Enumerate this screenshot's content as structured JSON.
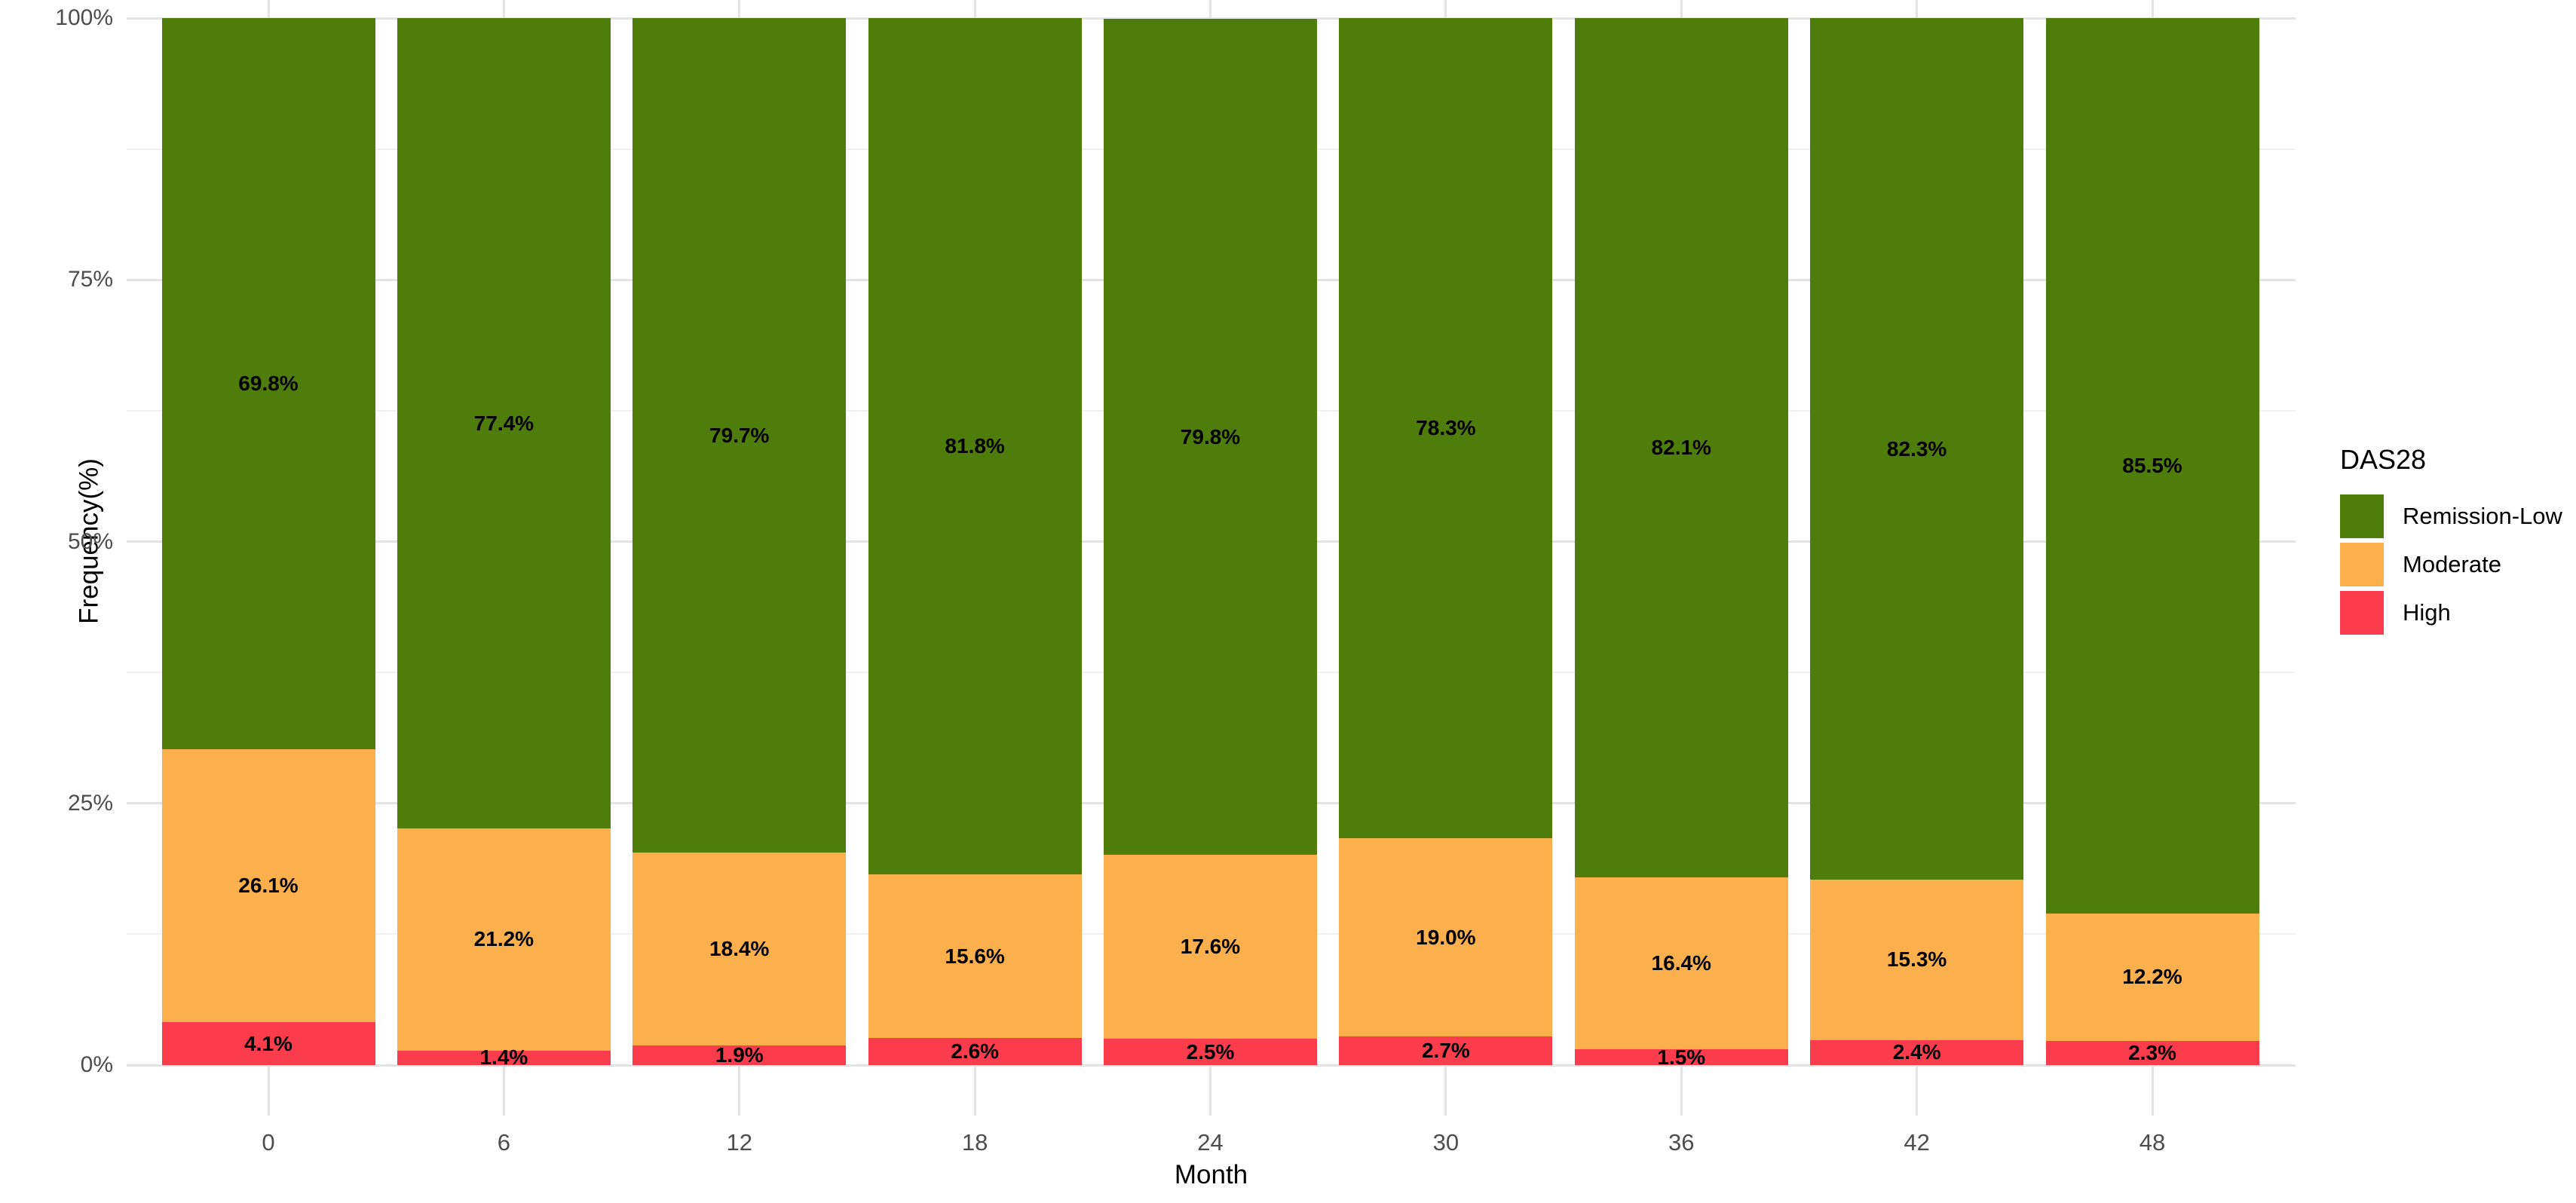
{
  "chart_data": {
    "type": "bar",
    "variant": "stacked-percent",
    "title": "",
    "xlabel": "Month",
    "ylabel": "Frequency(%)",
    "categories": [
      "0",
      "6",
      "12",
      "18",
      "24",
      "30",
      "36",
      "42",
      "48"
    ],
    "series": [
      {
        "name": "High",
        "color": "#fa3c4c",
        "values": [
          4.1,
          1.4,
          1.9,
          2.6,
          2.5,
          2.7,
          1.5,
          2.4,
          2.3
        ],
        "labels": [
          "4.1%",
          "1.4%",
          "1.9%",
          "2.6%",
          "2.5%",
          "2.7%",
          "1.5%",
          "2.4%",
          "2.3%"
        ]
      },
      {
        "name": "Moderate",
        "color": "#fbb04d",
        "values": [
          26.1,
          21.2,
          18.4,
          15.6,
          17.6,
          19.0,
          16.4,
          15.3,
          12.2
        ],
        "labels": [
          "26.1%",
          "21.2%",
          "18.4%",
          "15.6%",
          "17.6%",
          "19.0%",
          "16.4%",
          "15.3%",
          "12.2%"
        ]
      },
      {
        "name": "Remission-Low",
        "color": "#4e7d0c",
        "values": [
          69.8,
          77.4,
          79.7,
          81.8,
          79.8,
          78.3,
          82.1,
          82.3,
          85.5
        ],
        "labels": [
          "69.8%",
          "77.4%",
          "79.7%",
          "81.8%",
          "79.8%",
          "78.3%",
          "82.1%",
          "82.3%",
          "85.5%"
        ]
      }
    ],
    "stack_order_bottom_to_top": [
      "High",
      "Moderate",
      "Remission-Low"
    ],
    "ylim": [
      0,
      100
    ],
    "y_major_ticks": [
      0,
      25,
      50,
      75,
      100
    ],
    "y_tick_labels": [
      "0%",
      "25%",
      "50%",
      "75%",
      "100%"
    ],
    "y_minor_ticks": [
      12.5,
      37.5,
      62.5,
      87.5
    ],
    "grid": "horizontal major+minor lines, vertical major lines at bar centers",
    "legend_position": "right"
  },
  "legend": {
    "title": "DAS28",
    "items": [
      {
        "label": "Remission-Low",
        "color": "#4e7d0c"
      },
      {
        "label": "Moderate",
        "color": "#fbb04d"
      },
      {
        "label": "High",
        "color": "#fa3c4c"
      }
    ]
  },
  "axes": {
    "x_title": "Month",
    "y_title": "Frequency(%)"
  },
  "colors": {
    "background": "#ffffff",
    "grid_major": "#e3e3e3",
    "grid_minor": "#f0f0f0",
    "tick_text": "#4d4d4d",
    "bar_label_text": "#000000"
  }
}
